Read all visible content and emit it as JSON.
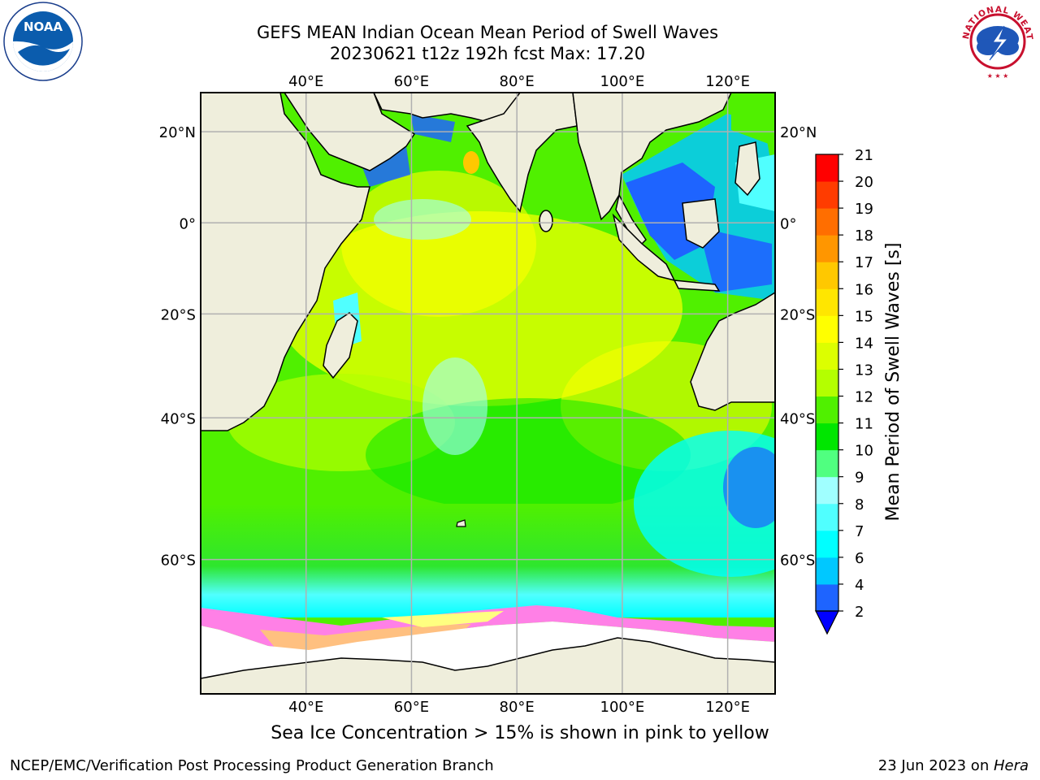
{
  "title_line1": "GEFS MEAN Indian Ocean Mean Period of Swell Waves",
  "title_line2": "20230621 t12z 192h fcst   Max: 17.20",
  "lon_labels": [
    "40°E",
    "60°E",
    "80°E",
    "100°E",
    "120°E"
  ],
  "lat_labels": [
    "20°N",
    "0°",
    "20°S",
    "40°S",
    "60°S"
  ],
  "lon_values": [
    40,
    60,
    80,
    100,
    120
  ],
  "lat_values": [
    20,
    0,
    -20,
    -40,
    -60
  ],
  "map_extent": {
    "lon": [
      20,
      129
    ],
    "lat": [
      -72,
      28
    ]
  },
  "colorbar": {
    "label": "Mean Period of Swell Waves [s]",
    "tick_labels": [
      "2",
      "4",
      "6",
      "7",
      "8",
      "9",
      "10",
      "11",
      "12",
      "13",
      "14",
      "15",
      "16",
      "17",
      "18",
      "19",
      "20",
      "21"
    ],
    "colors": [
      "#1e64ff",
      "#00c8ff",
      "#00ffff",
      "#50ffff",
      "#a0ffff",
      "#50ff80",
      "#00e600",
      "#50f000",
      "#b4ff00",
      "#dcff00",
      "#ffff00",
      "#ffe600",
      "#ffc800",
      "#ff9600",
      "#ff6e00",
      "#ff3c00",
      "#ff0000"
    ],
    "under_color": "#0000ff"
  },
  "footer_note": "Sea Ice Concentration > 15% is shown in pink to yellow",
  "credit_left": "NCEP/EMC/Verification Post Processing Product Generation Branch",
  "credit_date": "23 Jun 2023 on ",
  "credit_machine": "Hera",
  "logos": {
    "noaa_text": "NOAA",
    "nws_text": "NATIONAL WEATHER SERVICE"
  },
  "colors": {
    "land": "#efeedc",
    "ice": "#ffffff",
    "grid": "#b0b0b0"
  }
}
